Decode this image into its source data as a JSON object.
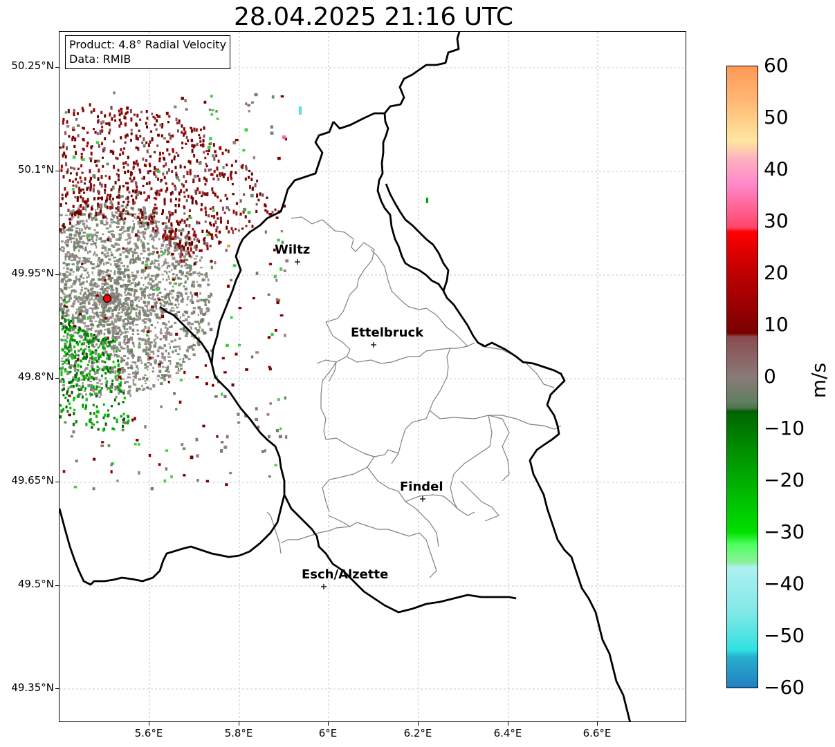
{
  "title": "28.04.2025 21:16 UTC",
  "info": {
    "product": "Product: 4.8° Radial Velocity",
    "data_source": "Data: RMIB"
  },
  "axes": {
    "lat_ticks": [
      "50.25°N",
      "50.1°N",
      "49.95°N",
      "49.8°N",
      "49.65°N",
      "49.5°N",
      "49.35°N"
    ],
    "lon_ticks": [
      "5.6°E",
      "5.8°E",
      "6°E",
      "6.2°E",
      "6.4°E",
      "6.6°E"
    ]
  },
  "colorbar": {
    "unit": "m/s",
    "ticks": [
      "60",
      "50",
      "40",
      "30",
      "20",
      "10",
      "0",
      "−10",
      "−20",
      "−30",
      "−40",
      "−50",
      "−60"
    ],
    "min": -60,
    "max": 60,
    "colors": {
      "high": "#ff9955",
      "pink": "#ff88cc",
      "red": "#ff0000",
      "dark_red": "#7a0000",
      "neutral": "#8a7a78",
      "dark_green": "#006400",
      "green": "#00e000",
      "cyan": "#30e0e0",
      "low": "#1f7fc0"
    }
  },
  "cities": [
    {
      "name": "Wiltz"
    },
    {
      "name": "Ettelbruck"
    },
    {
      "name": "Findel"
    },
    {
      "name": "Esch/Alzette"
    }
  ],
  "radar_site_color": "#ff0000"
}
